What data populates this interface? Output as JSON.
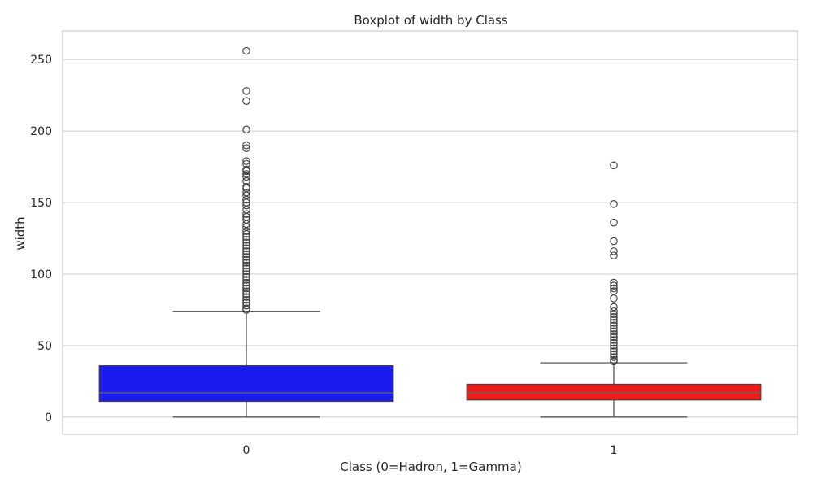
{
  "chart_data": {
    "type": "boxplot",
    "title": "Boxplot of width by Class",
    "xlabel": "Class (0=Hadron, 1=Gamma)",
    "ylabel": "width",
    "ylim": [
      -12,
      270
    ],
    "yticks": [
      0,
      50,
      100,
      150,
      200,
      250
    ],
    "grid": true,
    "categories": [
      "0",
      "1"
    ],
    "boxes": [
      {
        "category": "0",
        "color": "#1b1bf0",
        "whisker_low": 0,
        "q1": 11,
        "median": 17,
        "q3": 36,
        "whisker_high": 74,
        "outliers": [
          256,
          228,
          221,
          201,
          190,
          188,
          179,
          177,
          173,
          172,
          170,
          168,
          165,
          161,
          160,
          157,
          155,
          152,
          150,
          148,
          145,
          142,
          140,
          138,
          135,
          133,
          130,
          128,
          126,
          124,
          122,
          120,
          118,
          116,
          114,
          112,
          110,
          108,
          106,
          104,
          102,
          100,
          98,
          96,
          94,
          92,
          90,
          88,
          86,
          84,
          82,
          80,
          78,
          76,
          75
        ]
      },
      {
        "category": "1",
        "color": "#ee1b1b",
        "whisker_low": 0,
        "q1": 12,
        "median": 17,
        "q3": 23,
        "whisker_high": 38,
        "outliers": [
          176,
          149,
          136,
          123,
          116,
          113,
          94,
          92,
          90,
          88,
          83,
          77,
          74,
          72,
          70,
          68,
          66,
          64,
          62,
          60,
          58,
          56,
          54,
          52,
          50,
          48,
          46,
          44,
          42,
          40,
          39
        ]
      }
    ]
  }
}
